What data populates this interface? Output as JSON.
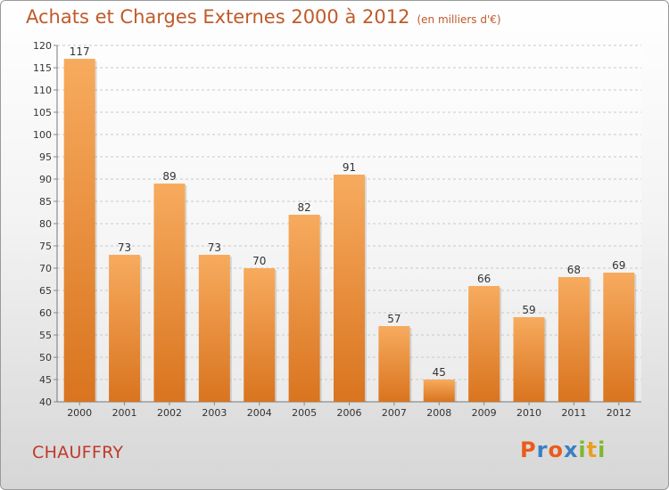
{
  "chart_data": {
    "type": "bar",
    "title": "Achats et Charges Externes 2000 à 2012",
    "subtitle": "(en milliers d'€)",
    "categories": [
      "2000",
      "2001",
      "2002",
      "2003",
      "2004",
      "2005",
      "2006",
      "2007",
      "2008",
      "2009",
      "2010",
      "2011",
      "2012"
    ],
    "values": [
      117,
      73,
      89,
      73,
      70,
      82,
      91,
      57,
      45,
      66,
      59,
      68,
      69
    ],
    "ylim": [
      40,
      120
    ],
    "yticks": [
      40,
      45,
      50,
      55,
      60,
      65,
      70,
      75,
      80,
      85,
      90,
      95,
      100,
      105,
      110,
      115,
      120
    ],
    "grid": true,
    "bar_color": "#e8832e",
    "bar_highlight": "#f6a85a"
  },
  "town": "CHAUFFRY",
  "logo": {
    "letters": [
      "P",
      "r",
      "o",
      "x",
      "i",
      "t",
      "i"
    ],
    "colors": [
      "#e85d1a",
      "#3a7fc1",
      "#e85d1a",
      "#3a7fc1",
      "#7cb830",
      "#e8a020",
      "#7cb830"
    ]
  }
}
